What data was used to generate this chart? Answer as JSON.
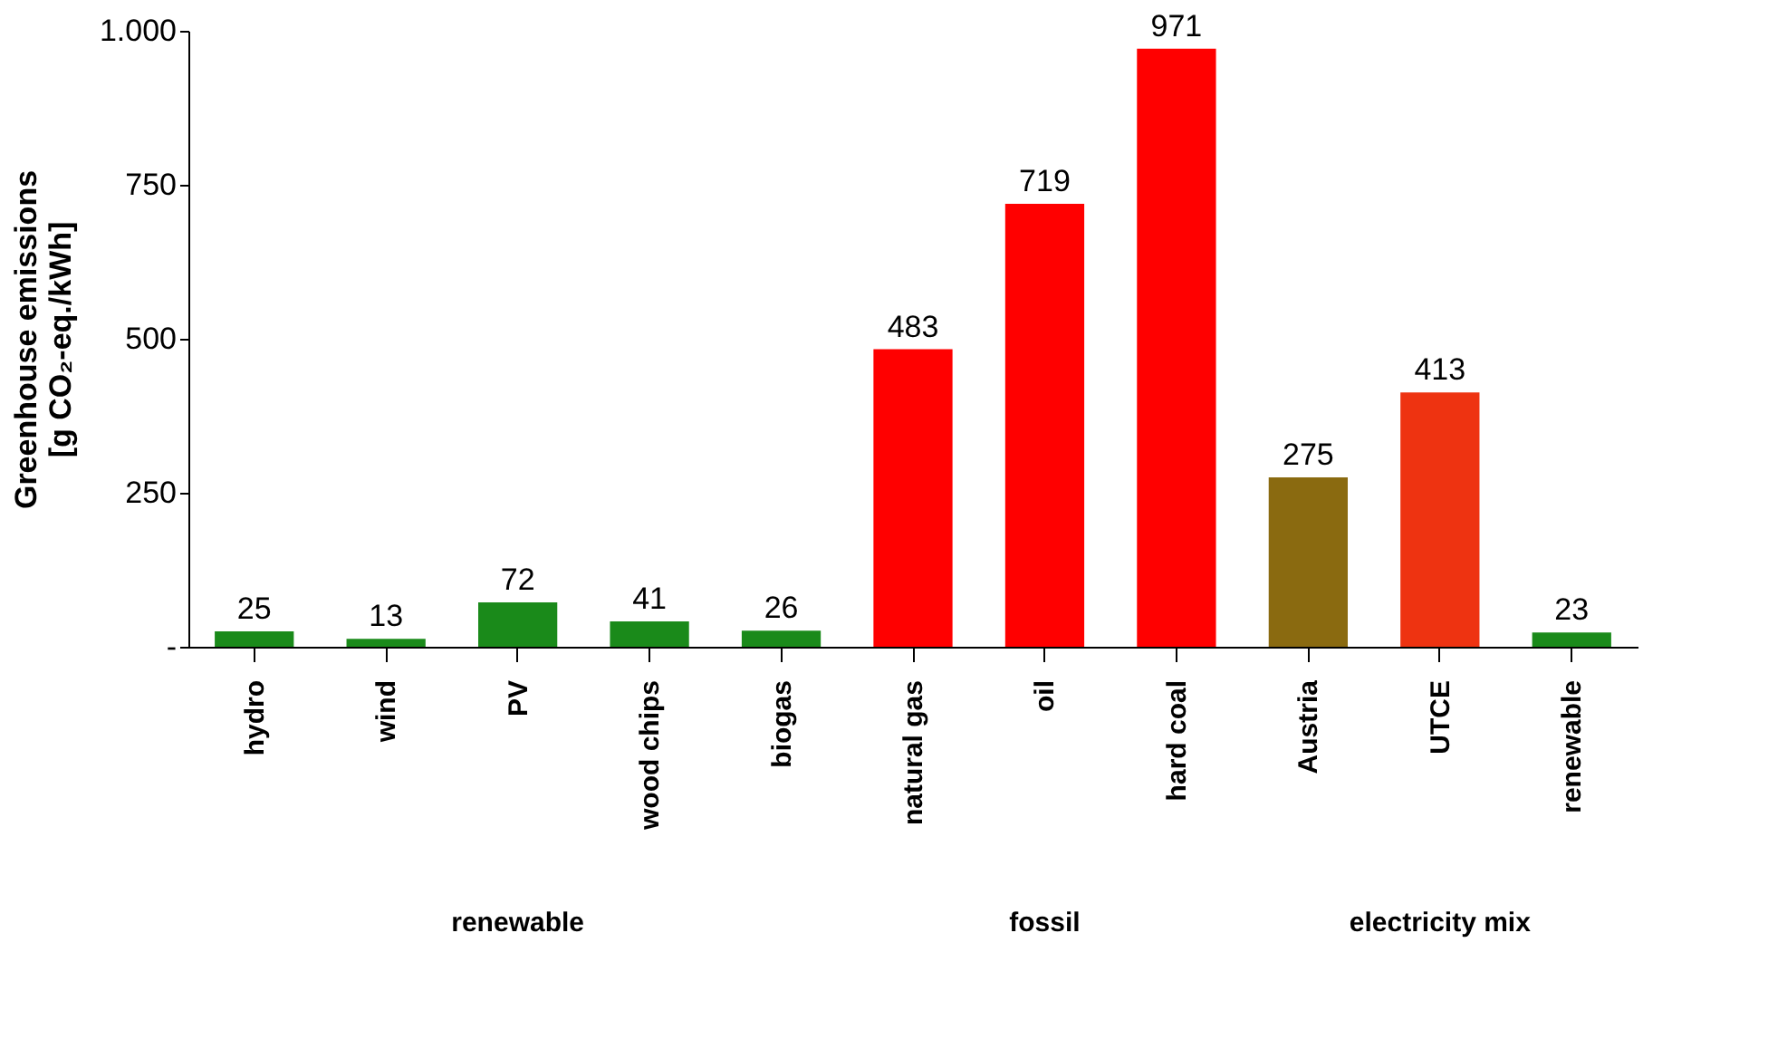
{
  "chart_data": {
    "type": "bar",
    "ylabel": "Greenhouse emissions\n[g CO₂-eq./kWh]",
    "categories": [
      "hydro",
      "wind",
      "PV",
      "wood chips",
      "biogas",
      "natural gas",
      "oil",
      "hard coal",
      "Austria",
      "UTCE",
      "renewable"
    ],
    "values": [
      25,
      13,
      72,
      41,
      26,
      483,
      719,
      971,
      275,
      413,
      23
    ],
    "colors": [
      "#1a8a1a",
      "#1a8a1a",
      "#1a8a1a",
      "#1a8a1a",
      "#1a8a1a",
      "#ff0000",
      "#ff0000",
      "#ff0000",
      "#8a6a10",
      "#ee3311",
      "#1a8a1a"
    ],
    "ylim": [
      0,
      1000
    ],
    "yticks": [
      {
        "value": 0,
        "label": "-"
      },
      250,
      500,
      750,
      {
        "value": 1000,
        "label": "1.000"
      }
    ],
    "data_labels": true,
    "grid": false,
    "annotations": [
      "renewable",
      "fossil",
      "electricity mix"
    ]
  }
}
